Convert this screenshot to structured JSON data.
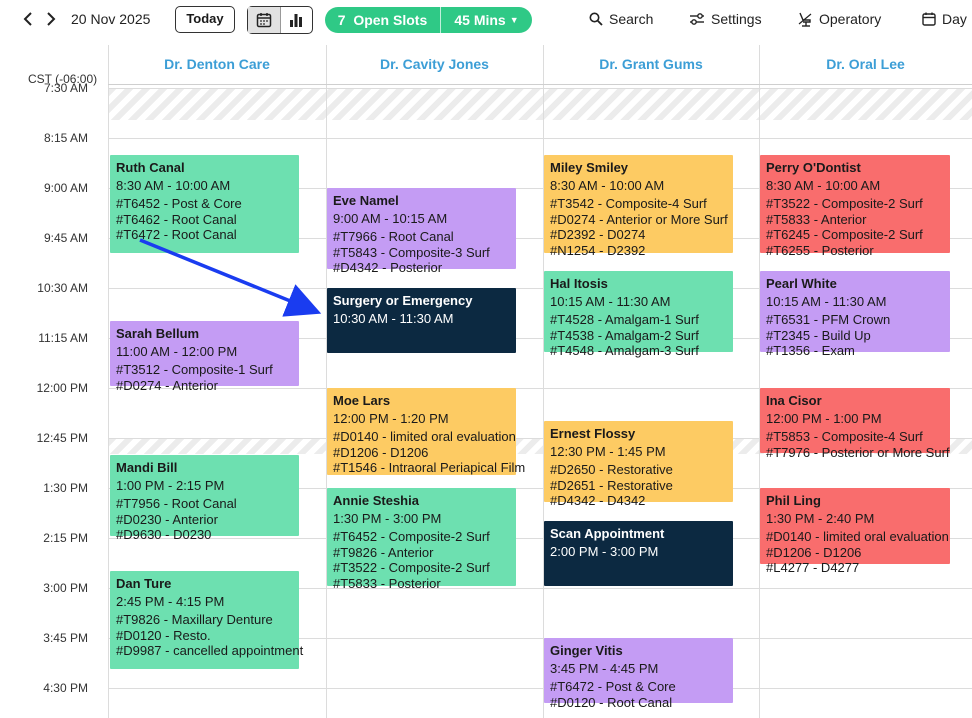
{
  "toolbar": {
    "prev_icon": "chevron-left-icon",
    "next_icon": "chevron-right-icon",
    "date": "20 Nov 2025",
    "today_label": "Today",
    "view_icons": [
      "calendar-icon",
      "bar-chart-icon"
    ],
    "open_slots_label": "7  Open Slots",
    "duration_label": "45 Mins",
    "search_label": "Search",
    "settings_label": "Settings",
    "operatory_label": "Operatory",
    "day_label": "Day"
  },
  "timezone": "CST (-06:00)",
  "time_labels": [
    "7:30 AM",
    "8:15 AM",
    "9:00 AM",
    "9:45 AM",
    "10:30 AM",
    "11:15 AM",
    "12:00 PM",
    "12:45 PM",
    "1:30 PM",
    "2:15 PM",
    "3:00 PM",
    "3:45 PM",
    "4:30 PM"
  ],
  "providers": [
    "Dr. Denton Care",
    "Dr. Cavity Jones",
    "Dr. Grant Gums",
    "Dr. Oral Lee"
  ],
  "colors": {
    "green": "#6de0b0",
    "purple": "#c49cf4",
    "orange": "#fdcb63",
    "red": "#f96d6d",
    "navy": "#0c2941",
    "accent": "#2fc986",
    "header_blue": "#3c9ed6",
    "arrow_blue": "#1a3cf0"
  },
  "appointments": [
    {
      "provider": 0,
      "name": "Ruth Canal",
      "time": "8:30 AM - 10:00 AM",
      "color": "green",
      "procs": [
        "#T6452 - Post & Core",
        "#T6462 - Root Canal",
        "#T6472 - Root Canal"
      ]
    },
    {
      "provider": 0,
      "name": "Sarah Bellum",
      "time": "11:00 AM - 12:00 PM",
      "color": "purple",
      "procs": [
        "#T3512 - Composite-1 Surf",
        "#D0274 - Anterior"
      ]
    },
    {
      "provider": 0,
      "name": "Mandi Bill",
      "time": "1:00 PM - 2:15 PM",
      "color": "green",
      "procs": [
        "#T7956 - Root Canal",
        "#D0230 - Anterior",
        "#D9630 - D0230"
      ]
    },
    {
      "provider": 0,
      "name": "Dan Ture",
      "time": "2:45 PM - 4:15 PM",
      "color": "green",
      "procs": [
        "#T9826 - Maxillary Denture",
        "#D0120 - Resto.",
        "#D9987 - cancelled appointment"
      ]
    },
    {
      "provider": 1,
      "name": "Eve Namel",
      "time": "9:00 AM - 10:15 AM",
      "color": "purple",
      "procs": [
        "#T7966 - Root Canal",
        "#T5843 - Composite-3 Surf",
        "#D4342 - Posterior"
      ]
    },
    {
      "provider": 1,
      "name": "Surgery or Emergency",
      "time": "10:30 AM - 11:30 AM",
      "color": "navy",
      "procs": []
    },
    {
      "provider": 1,
      "name": "Moe Lars",
      "time": "12:00 PM - 1:20 PM",
      "color": "orange",
      "procs": [
        "#D0140 - limited oral evaluation",
        "#D1206 - D1206",
        "#T1546 - Intraoral Periapical Film"
      ]
    },
    {
      "provider": 1,
      "name": "Annie Steshia",
      "time": "1:30 PM - 3:00 PM",
      "color": "green",
      "procs": [
        "#T6452 - Composite-2 Surf",
        "#T9826 - Anterior",
        "#T3522 - Composite-2 Surf",
        "#T5833 - Posterior"
      ]
    },
    {
      "provider": 2,
      "name": "Miley Smiley",
      "time": "8:30 AM - 10:00 AM",
      "color": "orange",
      "procs": [
        "#T3542 - Composite-4 Surf",
        "#D0274 - Anterior or More Surf",
        "#D2392 - D0274",
        "#N1254 - D2392"
      ]
    },
    {
      "provider": 2,
      "name": "Hal Itosis",
      "time": "10:15 AM - 11:30 AM",
      "color": "green",
      "procs": [
        "#T4528 - Amalgam-1 Surf",
        "#T4538 - Amalgam-2 Surf",
        "#T4548 - Amalgam-3 Surf"
      ]
    },
    {
      "provider": 2,
      "name": "Ernest Flossy",
      "time": "12:30 PM - 1:45 PM",
      "color": "orange",
      "procs": [
        "#D2650 - Restorative",
        "#D2651 - Restorative",
        "#D4342 - D4342"
      ]
    },
    {
      "provider": 2,
      "name": "Scan Appointment",
      "time": "2:00 PM - 3:00 PM",
      "color": "navy",
      "procs": []
    },
    {
      "provider": 2,
      "name": "Ginger Vitis",
      "time": "3:45 PM - 4:45 PM",
      "color": "purple",
      "procs": [
        "#T6472 - Post & Core",
        "#D0120 - Root Canal"
      ]
    },
    {
      "provider": 3,
      "name": "Perry O'Dontist",
      "time": "8:30 AM - 10:00 AM",
      "color": "red",
      "procs": [
        "#T3522 - Composite-2 Surf",
        "#T5833 - Anterior",
        "#T6245 - Composite-2 Surf",
        "#T6255 - Posterior"
      ]
    },
    {
      "provider": 3,
      "name": "Pearl White",
      "time": "10:15 AM - 11:30 AM",
      "color": "purple",
      "procs": [
        "#T6531 - PFM Crown",
        "#T2345 - Build Up",
        "#T1356 - Exam"
      ]
    },
    {
      "provider": 3,
      "name": "Ina Cisor",
      "time": "12:00 PM - 1:00 PM",
      "color": "red",
      "procs": [
        "#T5853 - Composite-4 Surf",
        "#T7976 - Posterior or More Surf"
      ]
    },
    {
      "provider": 3,
      "name": "Phil Ling",
      "time": "1:30 PM - 2:40 PM",
      "color": "red",
      "procs": [
        "#D0140 - limited oral evaluation",
        "#D1206 - D1206",
        "#L4277 - D4277"
      ]
    }
  ]
}
